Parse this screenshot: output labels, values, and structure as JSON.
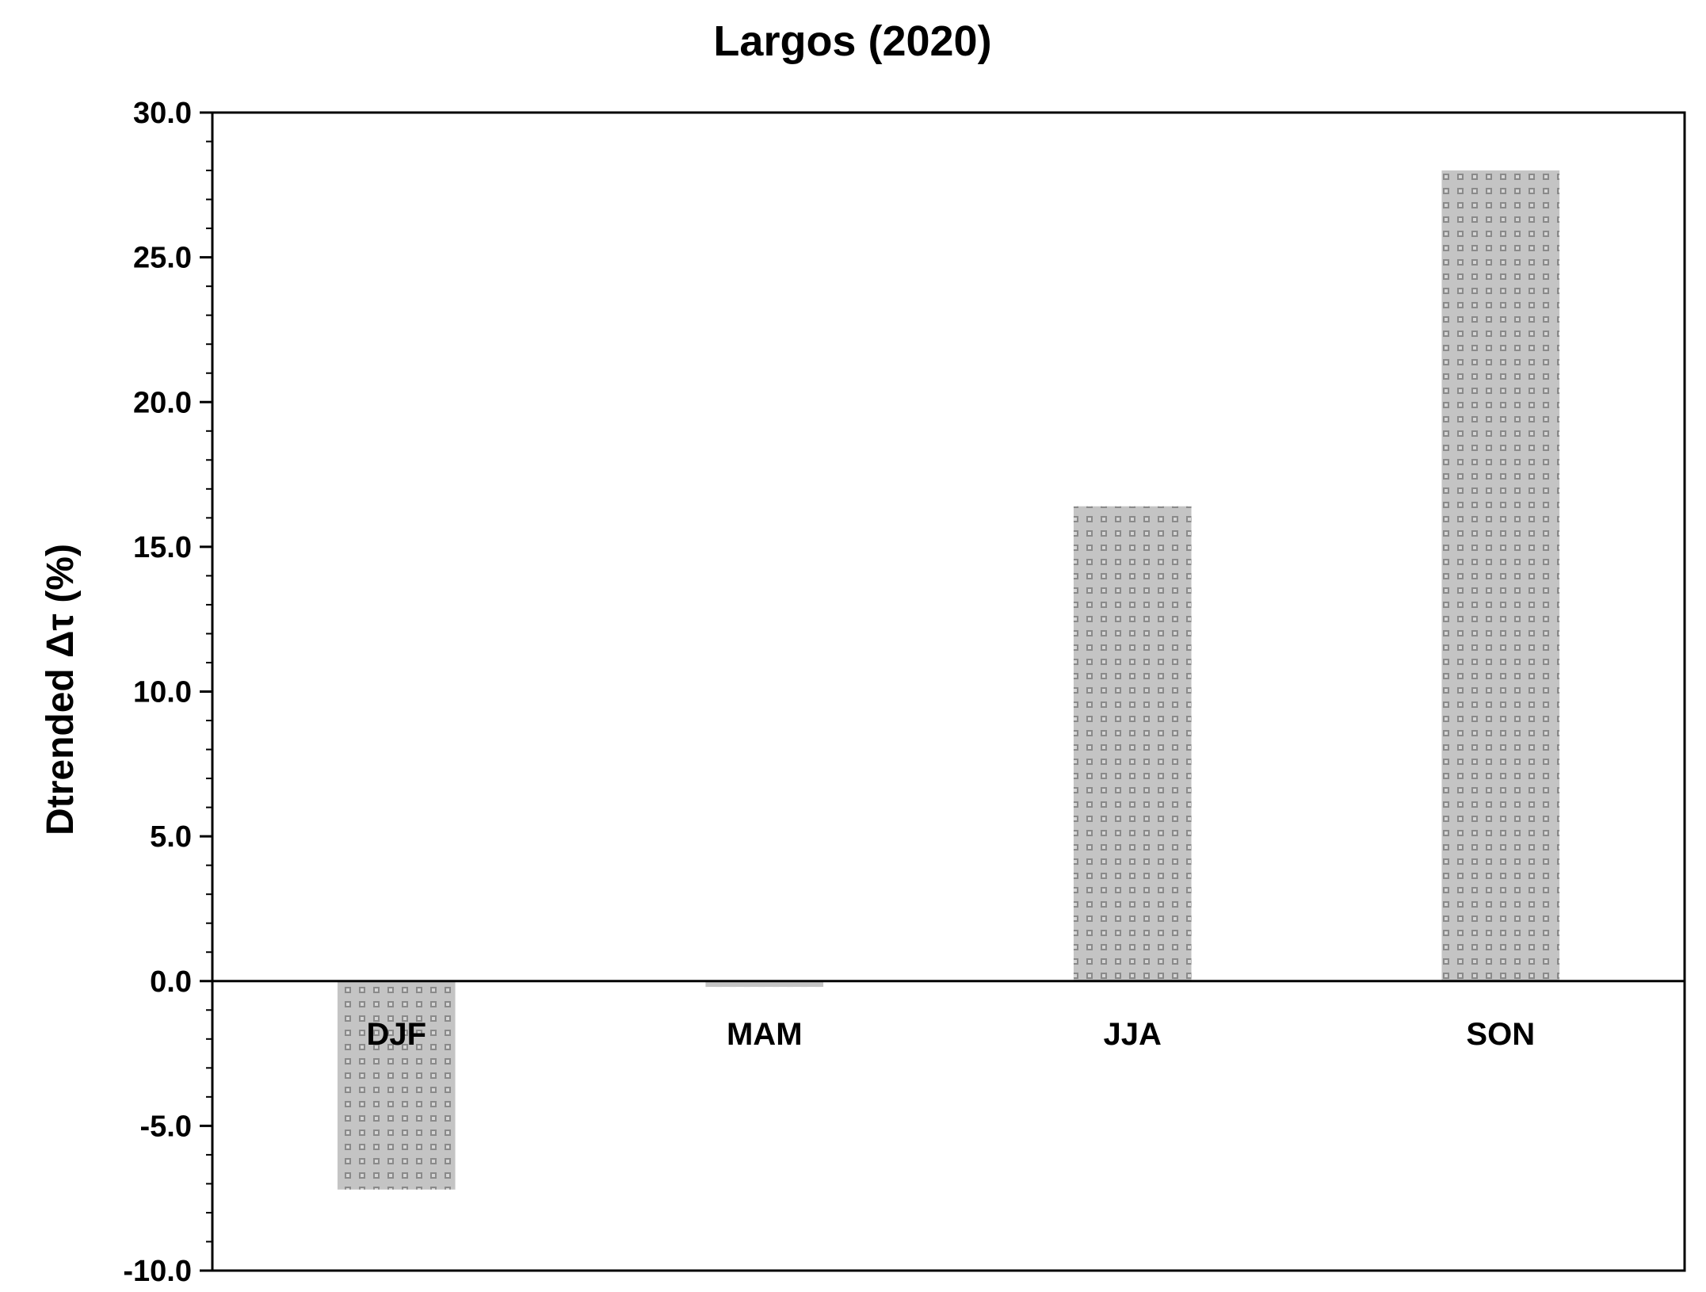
{
  "chart_data": {
    "type": "bar",
    "title": "Largos (2020)",
    "ylabel": "Dtrended Δτ (%)",
    "xlabel": "",
    "categories": [
      "DJF",
      "MAM",
      "JJA",
      "SON"
    ],
    "values": [
      -7.2,
      -0.2,
      16.4,
      28.0
    ],
    "ylim": [
      -10.0,
      30.0
    ],
    "yticks": [
      30.0,
      25.0,
      20.0,
      15.0,
      10.0,
      5.0,
      0.0,
      -5.0,
      -10.0
    ],
    "ytick_labels": [
      "30.0",
      "25.0",
      "20.0",
      "15.0",
      "10.0",
      "5.0",
      "0.0",
      "-5.0",
      "-10.0"
    ],
    "minor_ytick_step": 1.0,
    "grid": false,
    "legend": false,
    "bar_fill": "dotted gray pattern",
    "colors": {
      "bar_base": "#c4c4c4",
      "bar_dot": "#8a8a8a",
      "axis": "#000000",
      "background": "#ffffff"
    }
  }
}
